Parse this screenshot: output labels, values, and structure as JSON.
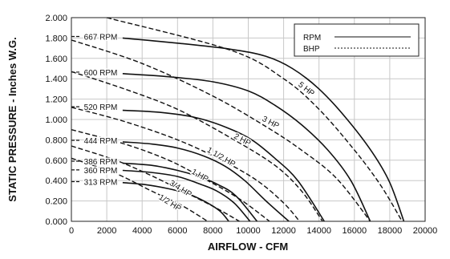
{
  "chart_data": {
    "type": "line",
    "xlabel": "AIRFLOW - CFM",
    "ylabel": "STATIC PRESSURE - Inches W.G.",
    "xlim": [
      0,
      20000
    ],
    "ylim": [
      0,
      2.0
    ],
    "x_ticks": [
      0,
      2000,
      4000,
      6000,
      8000,
      10000,
      12000,
      14000,
      16000,
      18000,
      20000
    ],
    "y_ticks": [
      "0.000",
      "0.200",
      "0.400",
      "0.600",
      "0.800",
      "1.000",
      "1.200",
      "1.400",
      "1.600",
      "1.800",
      "2.000"
    ],
    "grid": true,
    "legend": {
      "placement": "top-right",
      "entries": [
        {
          "label": "RPM",
          "style": "solid"
        },
        {
          "label": "BHP",
          "style": "dashed"
        }
      ]
    },
    "rpm_curves": [
      {
        "label": "667 RPM",
        "label_at": [
          2600,
          1.815
        ],
        "points": [
          [
            2900,
            1.8
          ],
          [
            6000,
            1.75
          ],
          [
            9000,
            1.69
          ],
          [
            11000,
            1.62
          ],
          [
            12500,
            1.5
          ],
          [
            14000,
            1.3
          ],
          [
            15500,
            1.02
          ],
          [
            17000,
            0.68
          ],
          [
            18000,
            0.38
          ],
          [
            18800,
            0.0
          ]
        ]
      },
      {
        "label": "600 RPM",
        "label_at": [
          2600,
          1.465
        ],
        "points": [
          [
            2900,
            1.45
          ],
          [
            5500,
            1.42
          ],
          [
            8000,
            1.37
          ],
          [
            10000,
            1.28
          ],
          [
            11500,
            1.14
          ],
          [
            13000,
            0.95
          ],
          [
            14500,
            0.7
          ],
          [
            15800,
            0.4
          ],
          [
            16900,
            0.0
          ]
        ]
      },
      {
        "label": "520 RPM",
        "label_at": [
          2600,
          1.125
        ],
        "points": [
          [
            2900,
            1.09
          ],
          [
            5000,
            1.07
          ],
          [
            7000,
            1.02
          ],
          [
            8800,
            0.92
          ],
          [
            10200,
            0.8
          ],
          [
            11500,
            0.62
          ],
          [
            12800,
            0.4
          ],
          [
            14300,
            0.0
          ]
        ]
      },
      {
        "label": "444 RPM",
        "label_at": [
          2600,
          0.795
        ],
        "points": [
          [
            2900,
            0.78
          ],
          [
            4500,
            0.76
          ],
          [
            6000,
            0.72
          ],
          [
            7500,
            0.64
          ],
          [
            8700,
            0.54
          ],
          [
            9800,
            0.4
          ],
          [
            11000,
            0.2
          ],
          [
            12300,
            0.0
          ]
        ]
      },
      {
        "label": "386 RPM",
        "label_at": [
          2600,
          0.59
        ],
        "points": [
          [
            2900,
            0.57
          ],
          [
            4500,
            0.55
          ],
          [
            6000,
            0.5
          ],
          [
            7200,
            0.44
          ],
          [
            8300,
            0.36
          ],
          [
            9300,
            0.25
          ],
          [
            10500,
            0.0
          ]
        ]
      },
      {
        "label": "360 RPM",
        "label_at": [
          2600,
          0.505
        ],
        "points": [
          [
            2900,
            0.5
          ],
          [
            4500,
            0.48
          ],
          [
            6000,
            0.44
          ],
          [
            7200,
            0.37
          ],
          [
            8200,
            0.3
          ],
          [
            9200,
            0.18
          ],
          [
            10100,
            0.0
          ]
        ]
      },
      {
        "label": "313 RPM",
        "label_at": [
          2600,
          0.39
        ],
        "points": [
          [
            2900,
            0.38
          ],
          [
            4200,
            0.36
          ],
          [
            5500,
            0.32
          ],
          [
            6600,
            0.27
          ],
          [
            7600,
            0.19
          ],
          [
            8400,
            0.1
          ],
          [
            8900,
            0.0
          ]
        ]
      }
    ],
    "bhp_curves": [
      {
        "label": "5 HP",
        "label_at": [
          13200,
          1.28
        ],
        "label_angle": 38,
        "points": [
          [
            2000,
            2.0
          ],
          [
            9000,
            1.68
          ],
          [
            12000,
            1.4
          ],
          [
            14000,
            1.1
          ],
          [
            16000,
            0.7
          ],
          [
            17500,
            0.35
          ],
          [
            18700,
            0.0
          ]
        ]
      },
      {
        "label": "3 HP",
        "label_at": [
          11200,
          0.95
        ],
        "label_angle": 28,
        "points": [
          [
            0,
            1.78
          ],
          [
            4000,
            1.55
          ],
          [
            8000,
            1.23
          ],
          [
            11000,
            0.93
          ],
          [
            13000,
            0.7
          ],
          [
            15000,
            0.42
          ],
          [
            16900,
            0.0
          ]
        ]
      },
      {
        "label": "2 HP",
        "label_at": [
          9600,
          0.78
        ],
        "label_angle": 28,
        "points": [
          [
            0,
            1.47
          ],
          [
            3000,
            1.3
          ],
          [
            6000,
            1.1
          ],
          [
            9000,
            0.82
          ],
          [
            11500,
            0.55
          ],
          [
            13000,
            0.3
          ],
          [
            14200,
            0.0
          ]
        ]
      },
      {
        "label": "1 1/2 HP",
        "label_at": [
          8400,
          0.61
        ],
        "label_angle": 30,
        "points": [
          [
            0,
            1.12
          ],
          [
            3000,
            0.98
          ],
          [
            6000,
            0.8
          ],
          [
            8500,
            0.6
          ],
          [
            10500,
            0.4
          ],
          [
            12000,
            0.18
          ],
          [
            12900,
            0.0
          ]
        ]
      },
      {
        "label": "1 HP",
        "label_at": [
          7200,
          0.43
        ],
        "label_angle": 30,
        "points": [
          [
            0,
            0.9
          ],
          [
            3000,
            0.76
          ],
          [
            5500,
            0.6
          ],
          [
            7500,
            0.42
          ],
          [
            9500,
            0.22
          ],
          [
            11200,
            0.0
          ]
        ]
      },
      {
        "label": "3/4 HP",
        "label_at": [
          6100,
          0.3
        ],
        "label_angle": 32,
        "points": [
          [
            0,
            0.74
          ],
          [
            2500,
            0.6
          ],
          [
            4500,
            0.45
          ],
          [
            6500,
            0.28
          ],
          [
            8300,
            0.12
          ],
          [
            9500,
            0.0
          ]
        ]
      },
      {
        "label": "1/2 HP",
        "label_at": [
          5500,
          0.16
        ],
        "label_angle": 32,
        "points": [
          [
            0,
            0.62
          ],
          [
            2500,
            0.47
          ],
          [
            4500,
            0.3
          ],
          [
            6200,
            0.16
          ],
          [
            7700,
            0.0
          ]
        ]
      }
    ]
  }
}
